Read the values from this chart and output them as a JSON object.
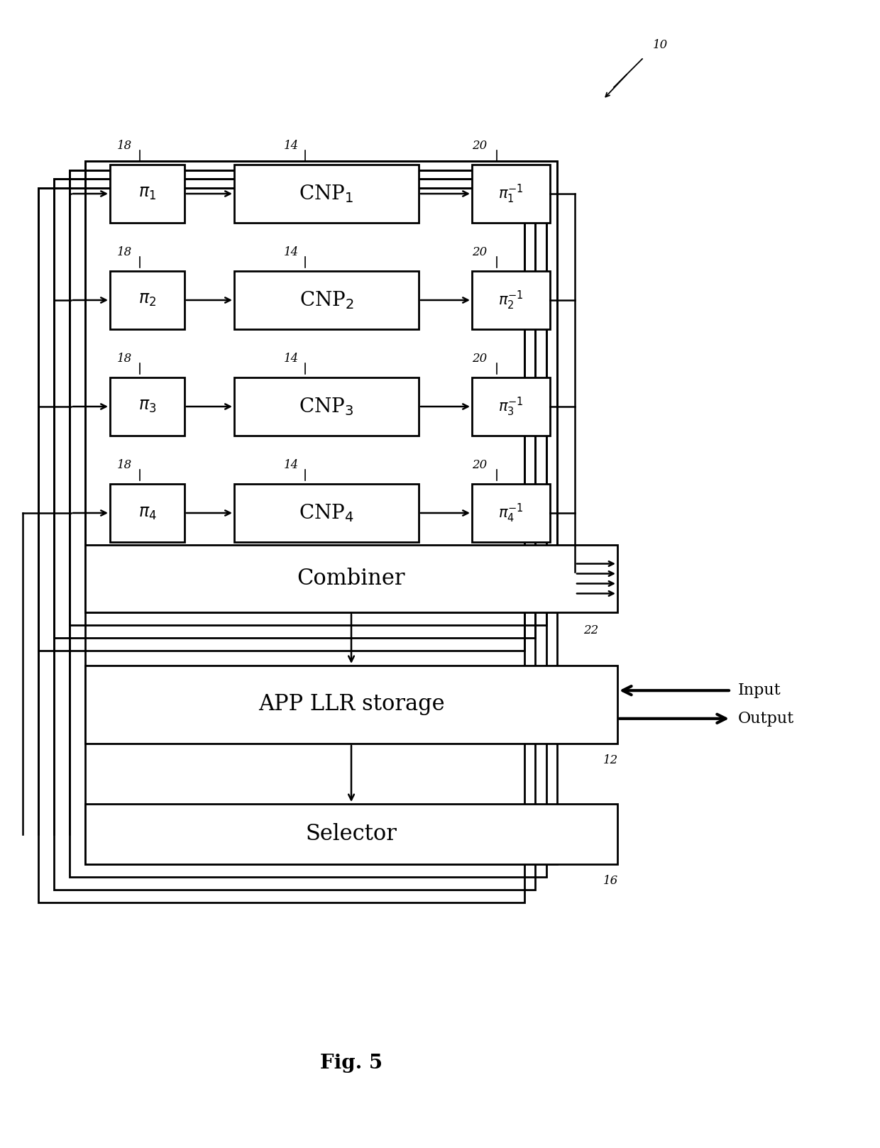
{
  "title": "Fig. 5",
  "background_color": "#ffffff",
  "fig_width": 12.4,
  "fig_height": 16.18,
  "rows": [
    {
      "pi_label": "$\\pi_1$",
      "cnp_label": "CNP$_1$",
      "pi_inv_label": "$\\pi_1^{-1}$"
    },
    {
      "pi_label": "$\\pi_2$",
      "cnp_label": "CNP$_2$",
      "pi_inv_label": "$\\pi_2^{-1}$"
    },
    {
      "pi_label": "$\\pi_3$",
      "cnp_label": "CNP$_3$",
      "pi_inv_label": "$\\pi_3^{-1}$"
    },
    {
      "pi_label": "$\\pi_4$",
      "cnp_label": "CNP$_4$",
      "pi_inv_label": "$\\pi_4^{-1}$"
    }
  ],
  "combiner_label": "Combiner",
  "app_llr_label": "APP LLR storage",
  "selector_label": "Selector",
  "label_10": "10",
  "label_18": "18",
  "label_14": "14",
  "label_20": "20",
  "label_22": "22",
  "label_12": "12",
  "label_16": "16",
  "input_label": "Input",
  "output_label": "Output"
}
